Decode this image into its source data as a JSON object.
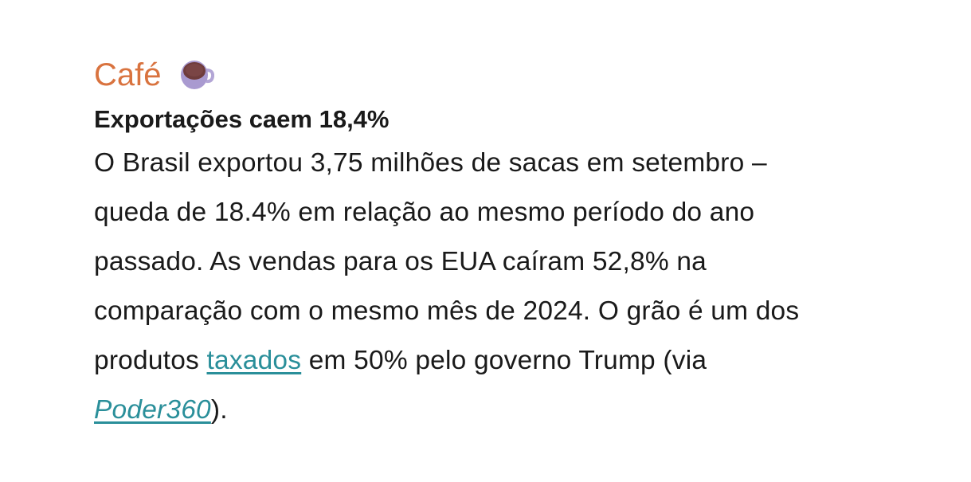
{
  "section": {
    "title": "Café",
    "icon": "coffee-cup-icon"
  },
  "headline": "Exportações caem 18,4%",
  "body": {
    "line1": "O Brasil exportou 3,75 milhões de sacas em setembro –",
    "line2": "queda de 18.4% em relação ao mesmo período do ano",
    "line3": "passado. As vendas para os EUA caíram 52,8% na",
    "line4": "comparação com o mesmo mês de 2024. O grão é um dos",
    "line5_pre": "produtos ",
    "link_taxados": "taxados",
    "line5_post": " em 50% pelo governo Trump (via",
    "link_source": "Poder360",
    "line6_post": ")."
  },
  "colors": {
    "title": "#d9733f",
    "link": "#2a8f9a"
  }
}
